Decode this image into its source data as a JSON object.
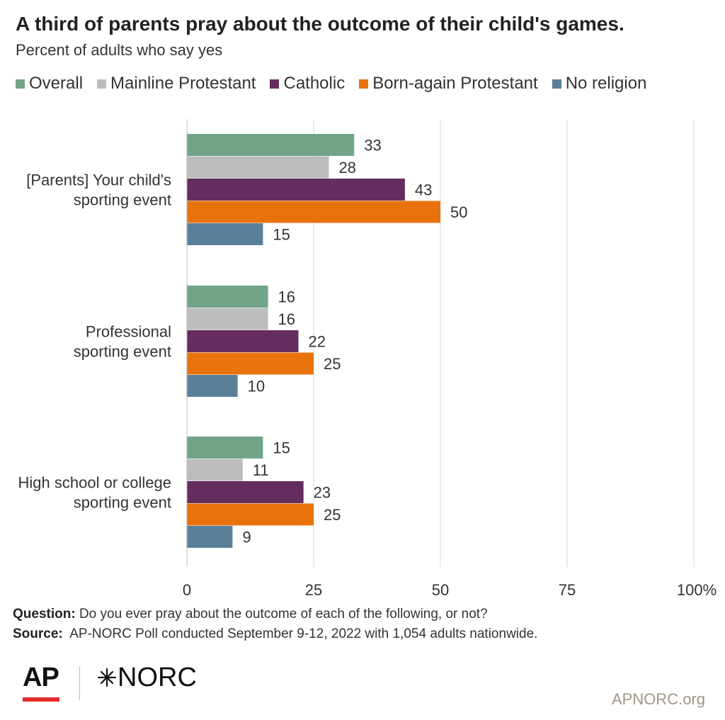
{
  "header": {
    "title": "A third of parents pray about the outcome of their child's games.",
    "subtitle": "Percent of adults who say yes"
  },
  "legend": [
    {
      "label": "Overall",
      "color": "#72a487"
    },
    {
      "label": "Mainline Protestant",
      "color": "#bdbdbd"
    },
    {
      "label": "Catholic",
      "color": "#652d5e"
    },
    {
      "label": "Born-again Protestant",
      "color": "#e8730c"
    },
    {
      "label": "No religion",
      "color": "#5a8099"
    }
  ],
  "chart_data": {
    "type": "bar",
    "orientation": "horizontal",
    "categories": [
      [
        "[Parents] Your child's",
        "sporting event"
      ],
      [
        "Professional",
        "sporting event"
      ],
      [
        "High school or college",
        "sporting event"
      ]
    ],
    "series": [
      {
        "name": "Overall",
        "color": "#72a487",
        "values": [
          33,
          16,
          15
        ]
      },
      {
        "name": "Mainline Protestant",
        "color": "#bdbdbd",
        "values": [
          28,
          16,
          11
        ]
      },
      {
        "name": "Catholic",
        "color": "#652d5e",
        "values": [
          43,
          22,
          23
        ]
      },
      {
        "name": "Born-again Protestant",
        "color": "#e8730c",
        "values": [
          50,
          25,
          25
        ]
      },
      {
        "name": "No religion",
        "color": "#5a8099",
        "values": [
          15,
          10,
          9
        ]
      }
    ],
    "xlim": [
      0,
      100
    ],
    "xticks": [
      0,
      25,
      50,
      75,
      100
    ],
    "xtick_labels": [
      "0",
      "25",
      "50",
      "75",
      "100%"
    ],
    "grid": true,
    "legend_position": "top"
  },
  "footer": {
    "question_label": "Question:",
    "question_text": " Do you ever pray about the outcome of each of the following, or not?",
    "source_label": "Source:",
    "source_text": "  AP-NORC Poll conducted September 9-12, 2022 with 1,054 adults nationwide."
  },
  "branding": {
    "ap_logo": "AP",
    "norc_logo": "NORC",
    "site": "APNORC.org",
    "ap_accent": "#e32b2b"
  }
}
